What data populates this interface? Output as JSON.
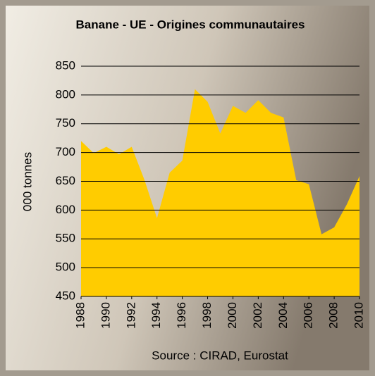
{
  "chart_data": {
    "type": "area",
    "title": "Banane - UE - Origines communautaires",
    "y_label": "000 tonnes",
    "source": "Source : CIRAD, Eurostat",
    "x": [
      1988,
      1989,
      1990,
      1991,
      1992,
      1993,
      1994,
      1995,
      1996,
      1997,
      1998,
      1999,
      2000,
      2001,
      2002,
      2003,
      2004,
      2005,
      2006,
      2007,
      2008,
      2009,
      2010
    ],
    "values": [
      720,
      699,
      710,
      697,
      710,
      653,
      586,
      665,
      686,
      810,
      788,
      733,
      781,
      769,
      791,
      769,
      761,
      652,
      645,
      558,
      570,
      610,
      659
    ],
    "color": "#ffcc00",
    "xlim": [
      1988,
      2010
    ],
    "xticks": [
      1988,
      1990,
      1992,
      1994,
      1996,
      1998,
      2000,
      2002,
      2004,
      2006,
      2008,
      2010
    ],
    "ylim": [
      450,
      850
    ],
    "yticks": [
      450,
      500,
      550,
      600,
      650,
      700,
      750,
      800,
      850
    ],
    "grid": true
  }
}
